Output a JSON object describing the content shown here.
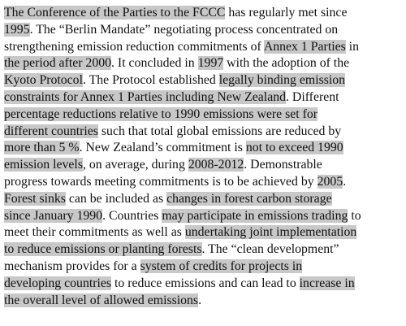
{
  "document": {
    "lines": [
      [
        {
          "t": "The Conference of the Parties to the FCCC",
          "h": true
        },
        {
          "t": " has regularly met since",
          "h": false
        }
      ],
      [
        {
          "t": "1995",
          "h": true
        },
        {
          "t": ". The “Berlin Mandate” negotiating process concentrated on",
          "h": false
        }
      ],
      [
        {
          "t": "strengthening emission reduction commitments of ",
          "h": false
        },
        {
          "t": "Annex 1 Parties",
          "h": true
        },
        {
          "t": " in",
          "h": false
        }
      ],
      [
        {
          "t": "the period after 2000",
          "h": true
        },
        {
          "t": ". It concluded in ",
          "h": false
        },
        {
          "t": "1997",
          "h": true
        },
        {
          "t": " with the adoption of the",
          "h": false
        }
      ],
      [
        {
          "t": "Kyoto Protocol",
          "h": true
        },
        {
          "t": ". The Protocol established ",
          "h": false
        },
        {
          "t": "legally binding emission",
          "h": true
        }
      ],
      [
        {
          "t": "constraints for Annex 1 Parties including New Zealand",
          "h": true
        },
        {
          "t": ". Different",
          "h": false
        }
      ],
      [
        {
          "t": "percentage reductions relative to 1990 emissions were set for",
          "h": true
        }
      ],
      [
        {
          "t": "different countries",
          "h": true
        },
        {
          "t": " such that total global emissions are reduced by",
          "h": false
        }
      ],
      [
        {
          "t": "more than 5 %",
          "h": true
        },
        {
          "t": ". New Zealand’s commitment is ",
          "h": false
        },
        {
          "t": "not to exceed 1990",
          "h": true
        }
      ],
      [
        {
          "t": "emission levels",
          "h": true
        },
        {
          "t": ", on average, during ",
          "h": false
        },
        {
          "t": "2008-2012",
          "h": true
        },
        {
          "t": ". Demonstrable",
          "h": false
        }
      ],
      [
        {
          "t": "progress towards meeting commitments is to be achieved by ",
          "h": false
        },
        {
          "t": "2005",
          "h": true
        },
        {
          "t": ".",
          "h": false
        }
      ],
      [
        {
          "t": "Forest sinks",
          "h": true
        },
        {
          "t": " can be included as ",
          "h": false
        },
        {
          "t": "changes in forest carbon storage",
          "h": true
        }
      ],
      [
        {
          "t": "since January 1990",
          "h": true
        },
        {
          "t": ". Countries ",
          "h": false
        },
        {
          "t": "may participate in emissions trading",
          "h": true
        },
        {
          "t": " to",
          "h": false
        }
      ],
      [
        {
          "t": "meet their commitments as well as ",
          "h": false
        },
        {
          "t": "undertaking joint implementation",
          "h": true
        }
      ],
      [
        {
          "t": "to reduce emissions or planting forests",
          "h": true
        },
        {
          "t": ". The “clean development”",
          "h": false
        }
      ],
      [
        {
          "t": "mechanism provides for a ",
          "h": false
        },
        {
          "t": "system of credits for projects in",
          "h": true
        }
      ],
      [
        {
          "t": "developing countries",
          "h": true
        },
        {
          "t": " to reduce emissions and can lead to ",
          "h": false
        },
        {
          "t": "increase in",
          "h": true
        }
      ],
      [
        {
          "t": "the overall level of allowed emissions",
          "h": true
        },
        {
          "t": ".",
          "h": false
        }
      ]
    ]
  }
}
